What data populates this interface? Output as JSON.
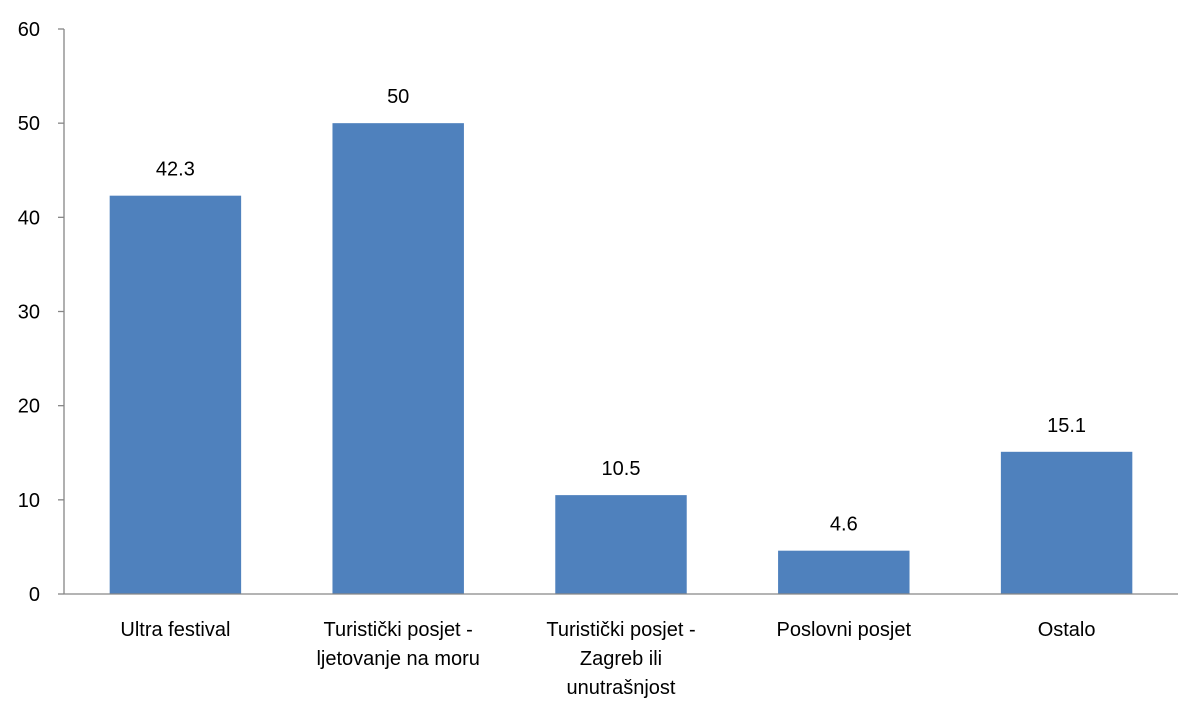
{
  "chart_data": {
    "type": "bar",
    "title": "",
    "xlabel": "",
    "ylabel": "",
    "ylim": [
      0,
      60
    ],
    "yticks": [
      0,
      10,
      20,
      30,
      40,
      50,
      60
    ],
    "grid": false,
    "legend": "none",
    "bar_color": "#4F81BD",
    "categories": [
      [
        "Ultra festival"
      ],
      [
        "Turistički posjet -",
        "ljetovanje na moru"
      ],
      [
        "Turistički posjet -",
        "Zagreb ili",
        "unutrašnjost"
      ],
      [
        "Poslovni posjet"
      ],
      [
        "Ostalo"
      ]
    ],
    "values": [
      42.3,
      50,
      10.5,
      4.6,
      15.1
    ],
    "data_labels": [
      "42.3",
      "50",
      "10.5",
      "4.6",
      "15.1"
    ]
  }
}
